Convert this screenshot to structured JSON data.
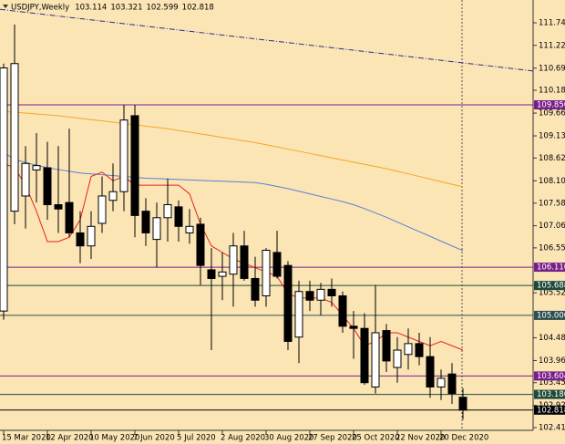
{
  "chart_data": {
    "type": "candlestick",
    "title": "USDJPY,Weekly",
    "categories": [
      "15 Mar 2020",
      null,
      null,
      null,
      "12 Apr 2020",
      null,
      null,
      null,
      "10 May 2020",
      null,
      null,
      null,
      "7 Jun 2020",
      null,
      null,
      null,
      "5 Jul 2020",
      null,
      null,
      null,
      "2 Aug 2020",
      null,
      null,
      null,
      "30 Aug 2020",
      null,
      null,
      null,
      "27 Sep 2020",
      null,
      null,
      null,
      "25 Oct 2020",
      null,
      null,
      null,
      "22 Nov 2020",
      null,
      null,
      null,
      "20 Dec 2020",
      null,
      null
    ],
    "open": [
      105.1,
      107.4,
      107.75,
      108.35,
      108.4,
      107.55,
      107.6,
      106.9,
      106.6,
      107.12,
      107.65,
      107.85,
      109.6,
      107.4,
      106.75,
      107.25,
      107.5,
      106.9,
      107.1,
      106.05,
      105.9,
      105.95,
      106.6,
      105.85,
      105.45,
      106.45,
      106.15,
      104.5,
      105.55,
      105.35,
      105.6,
      105.45,
      104.75,
      104.7,
      103.35,
      104.65,
      103.8,
      104.1,
      104.35,
      104.05,
      103.35,
      103.65,
      103.114
    ],
    "high": [
      110.8,
      111.7,
      108.9,
      109.2,
      109.0,
      108.9,
      109.3,
      107.4,
      107.4,
      108.2,
      108.5,
      109.85,
      109.85,
      107.7,
      107.6,
      108.15,
      107.65,
      107.45,
      107.25,
      106.55,
      106.45,
      106.9,
      106.95,
      106.35,
      106.55,
      106.95,
      106.25,
      105.8,
      105.8,
      105.75,
      105.85,
      105.55,
      105.1,
      105.05,
      105.7,
      104.8,
      104.5,
      104.7,
      104.6,
      104.5,
      103.75,
      103.9,
      103.321
    ],
    "low": [
      104.9,
      107.1,
      107.0,
      107.6,
      107.2,
      106.9,
      106.8,
      106.2,
      106.3,
      106.9,
      107.4,
      107.4,
      106.8,
      106.6,
      106.1,
      106.7,
      106.7,
      106.65,
      105.7,
      104.2,
      105.35,
      105.2,
      105.8,
      105.2,
      105.2,
      105.85,
      104.2,
      103.9,
      105.1,
      105.0,
      105.2,
      104.6,
      104.0,
      103.4,
      103.2,
      103.7,
      103.45,
      103.75,
      103.85,
      103.1,
      103.05,
      102.96,
      102.599
    ],
    "close": [
      110.7,
      110.8,
      108.5,
      108.45,
      107.55,
      107.45,
      106.9,
      106.6,
      107.05,
      107.75,
      107.85,
      109.5,
      107.3,
      106.9,
      107.25,
      107.55,
      107.05,
      107.05,
      106.15,
      105.85,
      106.0,
      106.6,
      105.85,
      105.35,
      106.5,
      105.9,
      104.4,
      105.55,
      105.35,
      105.6,
      105.45,
      104.75,
      104.7,
      103.45,
      104.6,
      103.95,
      104.2,
      104.35,
      104.05,
      103.35,
      103.55,
      103.2,
      102.818
    ],
    "series": [
      {
        "color": "#f5a623",
        "values": [
          109.7,
          109.68,
          109.66,
          109.64,
          109.62,
          109.6,
          109.57,
          109.54,
          109.51,
          109.48,
          109.45,
          109.42,
          109.39,
          109.36,
          109.33,
          109.3,
          109.26,
          109.22,
          109.18,
          109.14,
          109.1,
          109.06,
          109.02,
          108.98,
          108.93,
          108.88,
          108.83,
          108.78,
          108.73,
          108.68,
          108.63,
          108.58,
          108.53,
          108.48,
          108.43,
          108.38,
          108.32,
          108.26,
          108.2,
          108.14,
          108.08,
          108.02,
          107.96
        ]
      },
      {
        "color": "#5b7fd6",
        "values": [
          108.75,
          108.6,
          108.52,
          108.46,
          108.4,
          108.36,
          108.32,
          108.28,
          108.26,
          108.24,
          108.22,
          108.2,
          108.18,
          108.16,
          108.15,
          108.14,
          108.13,
          108.12,
          108.11,
          108.1,
          108.09,
          108.08,
          108.07,
          108.06,
          108.02,
          107.97,
          107.92,
          107.86,
          107.8,
          107.74,
          107.68,
          107.62,
          107.55,
          107.46,
          107.36,
          107.26,
          107.15,
          107.04,
          106.93,
          106.82,
          106.71,
          106.6,
          106.49
        ]
      },
      {
        "color": "#e8211d",
        "values": [
          108.5,
          108.4,
          108.0,
          107.4,
          106.7,
          106.7,
          106.8,
          107.2,
          108.2,
          108.3,
          108.1,
          108.2,
          108.0,
          108.0,
          108.0,
          108.0,
          108.0,
          107.8,
          107.1,
          106.6,
          106.45,
          106.3,
          106.2,
          106.1,
          106.0,
          105.9,
          105.5,
          105.4,
          105.4,
          105.4,
          105.3,
          105.0,
          104.7,
          104.3,
          104.4,
          104.6,
          104.6,
          104.5,
          104.4,
          104.3,
          104.4,
          104.3,
          104.2
        ]
      }
    ],
    "trend_line": {
      "color": "#2b2b8c",
      "values": [
        112.05,
        110.63
      ]
    },
    "levels": [
      {
        "value": 109.85,
        "label": "109.850",
        "color": "#7a1f8a"
      },
      {
        "value": 106.11,
        "label": "106.110",
        "color": "#7a1f8a"
      },
      {
        "value": 105.688,
        "color": "#1f4a3a"
      },
      {
        "value": 105,
        "label": "105.000",
        "color": "#2f4f4f"
      },
      {
        "value": 103.604,
        "color": "#7a1f8a"
      },
      {
        "value": 103.18,
        "label": "103.180",
        "color": "#1f4a3a"
      },
      {
        "value": 102.818,
        "color": "#000000"
      }
    ],
    "ylim": [
      102.352,
      112.265
    ],
    "yticks": [
      {
        "value": 111.74,
        "label": "111.740"
      },
      {
        "value": 111.22,
        "label": "111.220"
      },
      110.695,
      110.185,
      {
        "value": 109.66,
        "label": "109.660"
      },
      109.135,
      108.625,
      {
        "value": 108.1,
        "label": "108.100"
      },
      107.585,
      107.065,
      106.555,
      {
        "value": 105.52,
        "label": "105.520"
      },
      104.485,
      {
        "value": 103.96,
        "label": "103.960"
      },
      {
        "value": 103.45,
        "label": "103.450"
      },
      102.925,
      102.415
    ]
  }
}
